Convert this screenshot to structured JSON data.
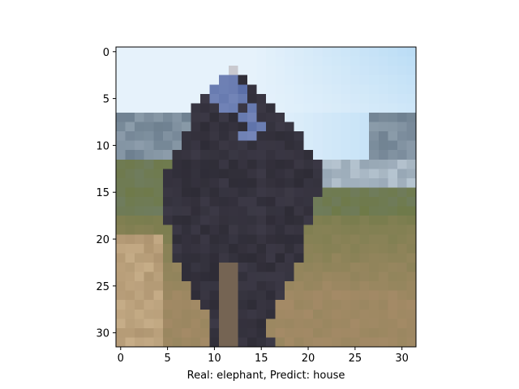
{
  "figure": {
    "xlabel": "Real: elephant, Predict: house",
    "x_ticks": [
      "0",
      "5",
      "10",
      "15",
      "20",
      "25",
      "30"
    ],
    "y_ticks": [
      "0",
      "5",
      "10",
      "15",
      "20",
      "25",
      "30"
    ],
    "image_grid": [
      32,
      32
    ],
    "image_description_colors": {
      "sky": "#e6f2fb",
      "sky_blue": "#b9dcf5",
      "hills": "#6e8090",
      "elephant": "#2e2c36",
      "rider": "#5b6fa8",
      "grass": "#6f7a48",
      "ground": "#a48a66"
    }
  }
}
